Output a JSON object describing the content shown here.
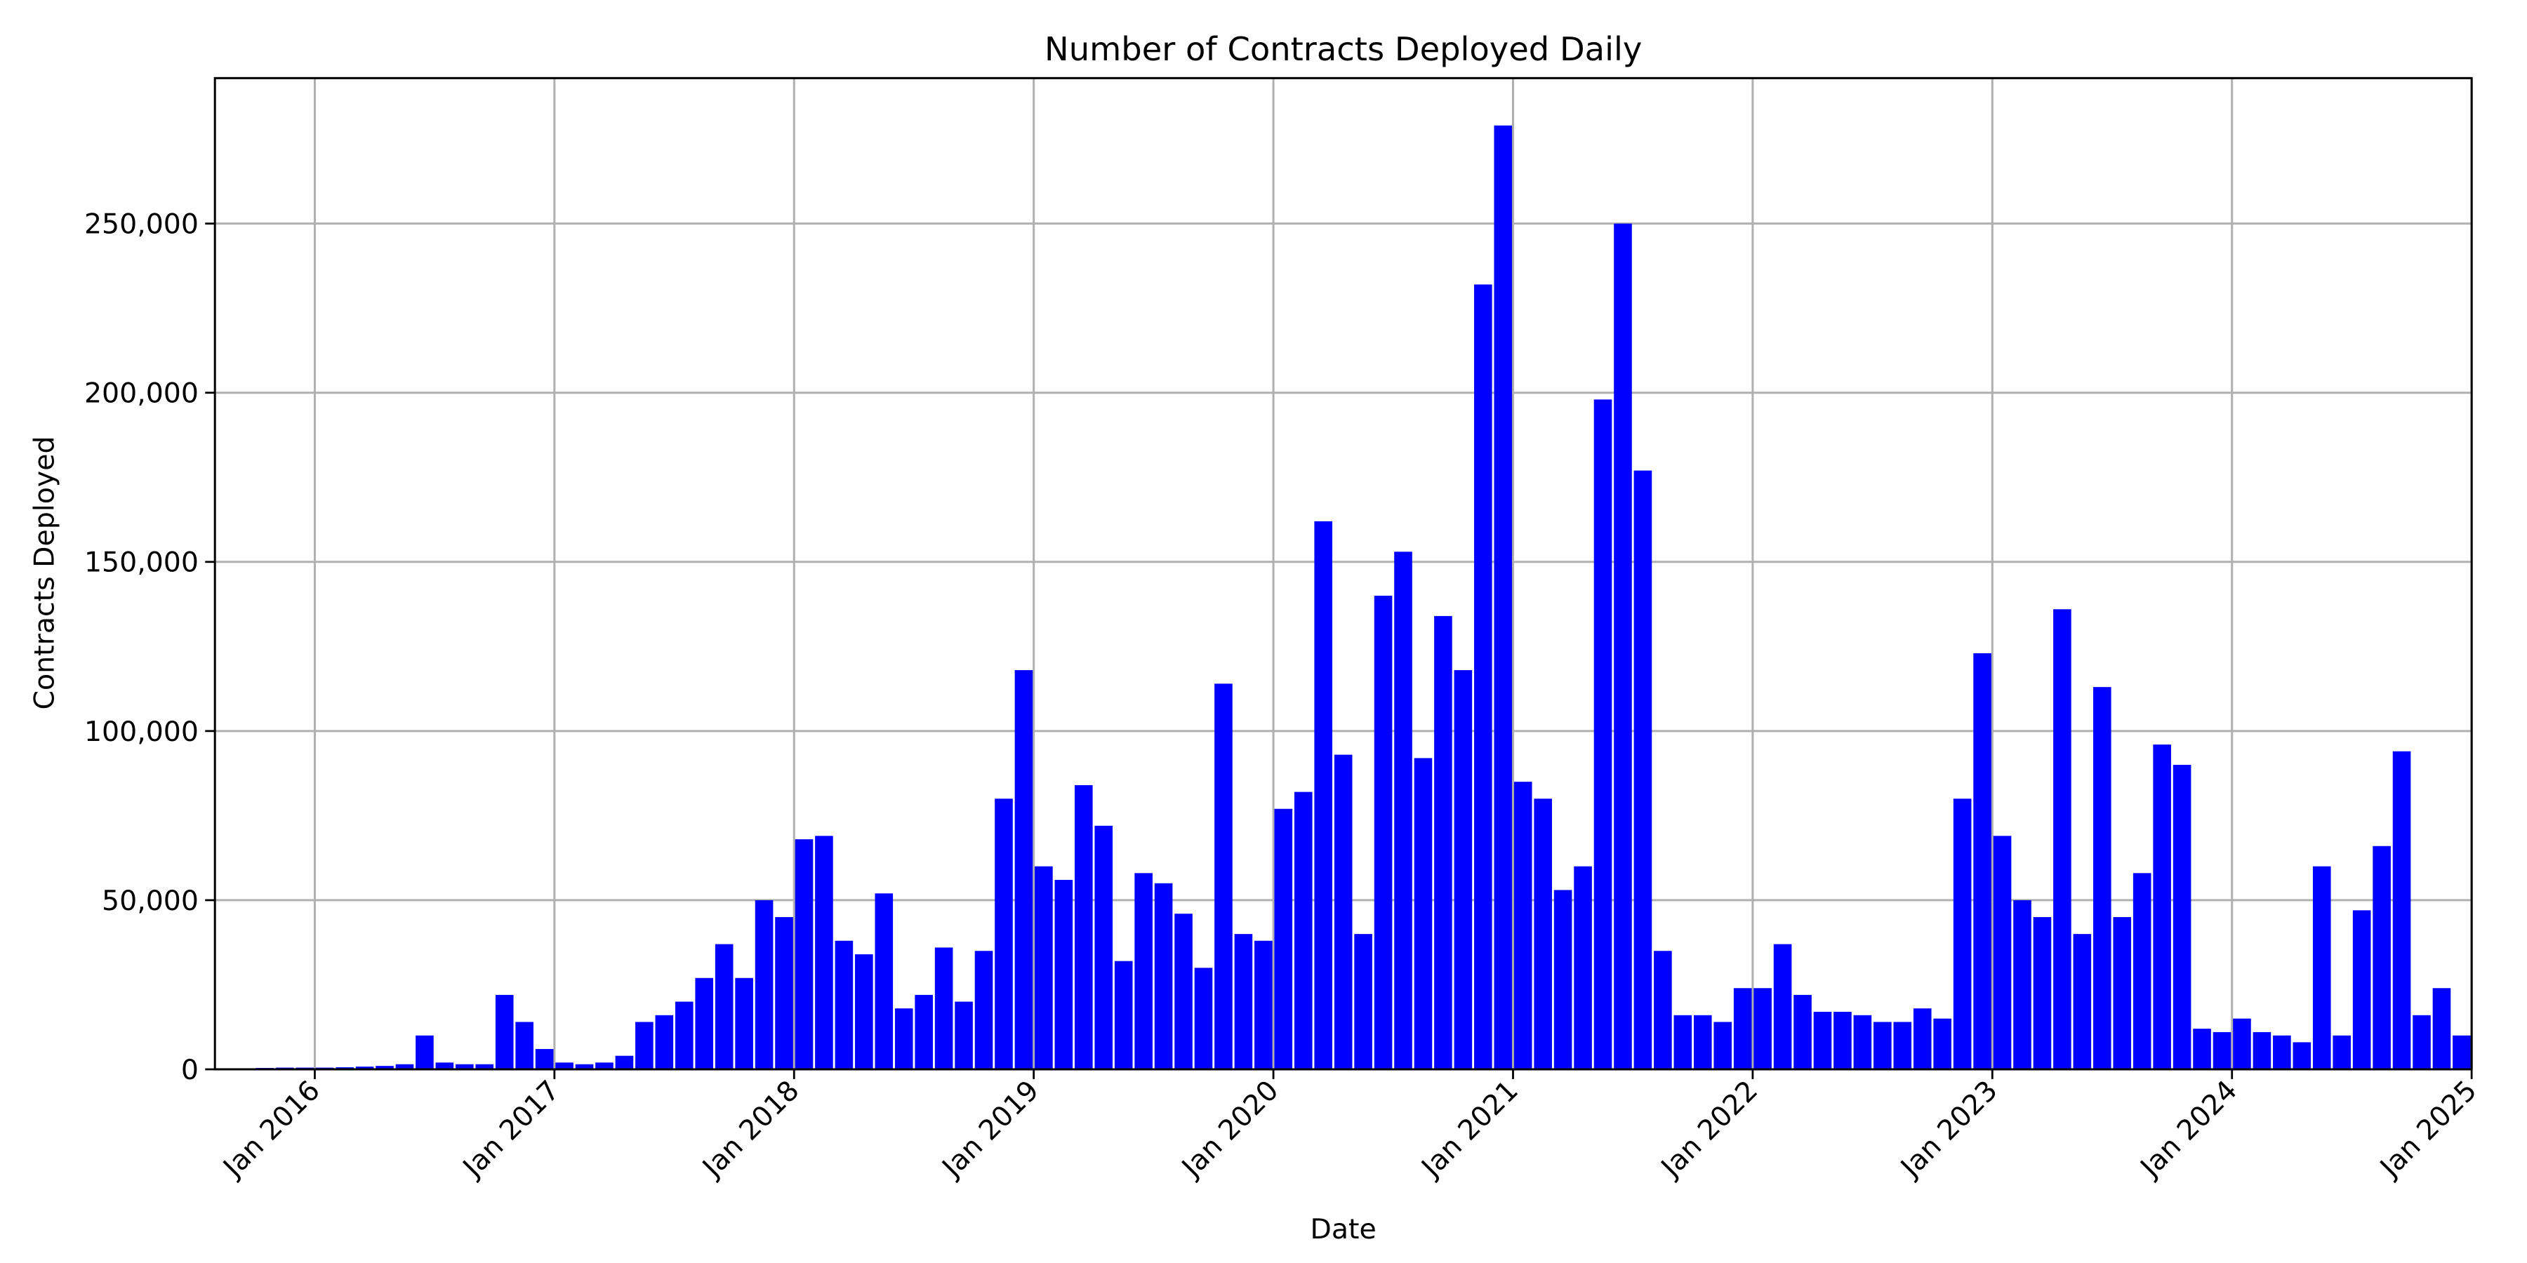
{
  "chart_data": {
    "type": "bar",
    "title": "Number of Contracts Deployed Daily",
    "x_label": "Date",
    "y_label": "Contracts Deployed",
    "color": "#0000ff",
    "grid": true,
    "xlim": [
      "2015-08",
      "2025-01"
    ],
    "xticks": [
      {
        "value": "2016-01",
        "label": "Jan 2016"
      },
      {
        "value": "2017-01",
        "label": "Jan 2017"
      },
      {
        "value": "2018-01",
        "label": "Jan 2018"
      },
      {
        "value": "2019-01",
        "label": "Jan 2019"
      },
      {
        "value": "2020-01",
        "label": "Jan 2020"
      },
      {
        "value": "2021-01",
        "label": "Jan 2021"
      },
      {
        "value": "2022-01",
        "label": "Jan 2022"
      },
      {
        "value": "2023-01",
        "label": "Jan 2023"
      },
      {
        "value": "2024-01",
        "label": "Jan 2024"
      },
      {
        "value": "2025-01",
        "label": "Jan 2025"
      }
    ],
    "ylim": [
      0,
      293000
    ],
    "yticks": [
      0,
      {
        "value": 50000,
        "label": "50,000"
      },
      {
        "value": 100000,
        "label": "100,000"
      },
      {
        "value": 150000,
        "label": "150,000"
      },
      {
        "value": 200000,
        "label": "200,000"
      },
      {
        "value": 250000,
        "label": "250,000"
      }
    ],
    "x": [
      "2015-08",
      "2015-09",
      "2015-10",
      "2015-11",
      "2015-12",
      "2016-01",
      "2016-02",
      "2016-03",
      "2016-04",
      "2016-05",
      "2016-06",
      "2016-07",
      "2016-08",
      "2016-09",
      "2016-10",
      "2016-11",
      "2016-12",
      "2017-01",
      "2017-02",
      "2017-03",
      "2017-04",
      "2017-05",
      "2017-06",
      "2017-07",
      "2017-08",
      "2017-09",
      "2017-10",
      "2017-11",
      "2017-12",
      "2018-01",
      "2018-02",
      "2018-03",
      "2018-04",
      "2018-05",
      "2018-06",
      "2018-07",
      "2018-08",
      "2018-09",
      "2018-10",
      "2018-11",
      "2018-12",
      "2019-01",
      "2019-02",
      "2019-03",
      "2019-04",
      "2019-05",
      "2019-06",
      "2019-07",
      "2019-08",
      "2019-09",
      "2019-10",
      "2019-11",
      "2019-12",
      "2020-01",
      "2020-02",
      "2020-03",
      "2020-04",
      "2020-05",
      "2020-06",
      "2020-07",
      "2020-08",
      "2020-09",
      "2020-10",
      "2020-11",
      "2020-12",
      "2021-01",
      "2021-02",
      "2021-03",
      "2021-04",
      "2021-05",
      "2021-06",
      "2021-07",
      "2021-08",
      "2021-09",
      "2021-10",
      "2021-11",
      "2021-12",
      "2022-01",
      "2022-02",
      "2022-03",
      "2022-04",
      "2022-05",
      "2022-06",
      "2022-07",
      "2022-08",
      "2022-09",
      "2022-10",
      "2022-11",
      "2022-12",
      "2023-01",
      "2023-02",
      "2023-03",
      "2023-04",
      "2023-05",
      "2023-06",
      "2023-07",
      "2023-08",
      "2023-09",
      "2023-10",
      "2023-11",
      "2023-12",
      "2024-01",
      "2024-02",
      "2024-03",
      "2024-04",
      "2024-05",
      "2024-06",
      "2024-07",
      "2024-08",
      "2024-09",
      "2024-10",
      "2024-11",
      "2024-12"
    ],
    "values": [
      300,
      300,
      400,
      500,
      500,
      500,
      600,
      800,
      1000,
      1500,
      10000,
      2000,
      1500,
      1500,
      22000,
      14000,
      6000,
      2000,
      1500,
      2000,
      4000,
      14000,
      16000,
      20000,
      27000,
      37000,
      27000,
      50000,
      45000,
      68000,
      69000,
      38000,
      34000,
      52000,
      18000,
      22000,
      36000,
      20000,
      35000,
      80000,
      118000,
      60000,
      56000,
      84000,
      72000,
      32000,
      58000,
      55000,
      46000,
      30000,
      114000,
      40000,
      38000,
      77000,
      82000,
      162000,
      93000,
      40000,
      140000,
      153000,
      92000,
      134000,
      118000,
      232000,
      279000,
      85000,
      80000,
      53000,
      60000,
      198000,
      250000,
      177000,
      35000,
      16000,
      16000,
      14000,
      24000,
      24000,
      37000,
      22000,
      17000,
      17000,
      16000,
      14000,
      14000,
      18000,
      15000,
      80000,
      123000,
      69000,
      50000,
      45000,
      136000,
      40000,
      113000,
      45000,
      58000,
      96000,
      90000,
      12000,
      11000,
      15000,
      11000,
      10000,
      8000,
      60000,
      10000,
      47000,
      66000,
      94000,
      16000,
      24000,
      10000
    ]
  }
}
